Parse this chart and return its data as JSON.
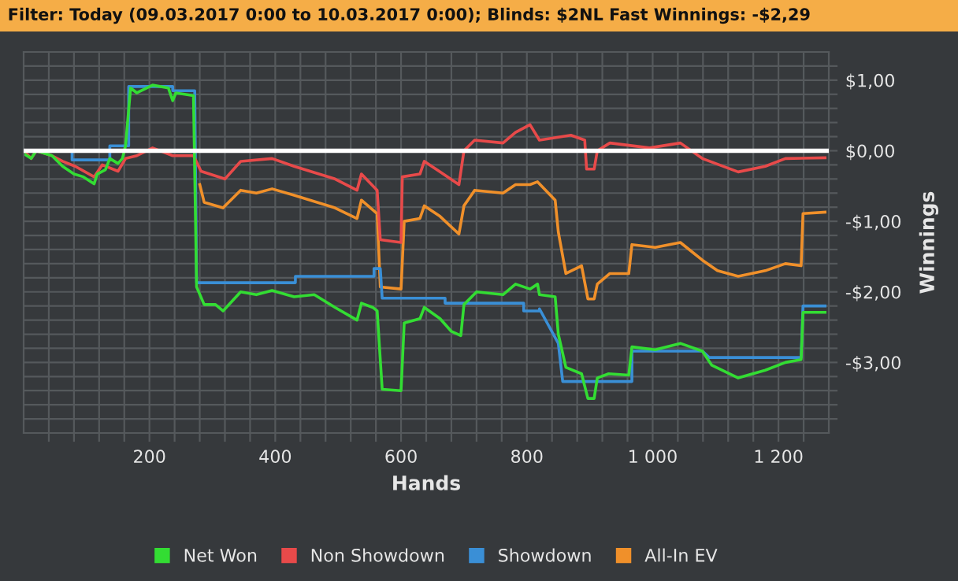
{
  "chart_data": {
    "type": "line",
    "title": "Filter: Today (09.03.2017 0:00 to 10.03.2017 0:00); Blinds: $2NL Fast Winnings: -$2,29",
    "xlabel": "Hands",
    "ylabel": "Winnings",
    "series": [
      {
        "name": "Net Won",
        "color": "#33dd33",
        "x": [
          0,
          12,
          20,
          45,
          62,
          80,
          95,
          112,
          117,
          130,
          137,
          150,
          157,
          162,
          170,
          180,
          205,
          230,
          237,
          242,
          270,
          275,
          287,
          305,
          317,
          345,
          370,
          395,
          430,
          462,
          495,
          530,
          537,
          555,
          562,
          570,
          600,
          605,
          630,
          637,
          662,
          680,
          695,
          700,
          720,
          762,
          782,
          805,
          817,
          820,
          845,
          850,
          862,
          887,
          897,
          907,
          912,
          930,
          962,
          967,
          1004,
          1044,
          1079,
          1094,
          1136,
          1179,
          1211,
          1236,
          1239,
          1274
        ],
        "values": [
          -0.04,
          -0.11,
          0.0,
          -0.07,
          -0.22,
          -0.33,
          -0.37,
          -0.47,
          -0.33,
          -0.27,
          -0.11,
          -0.18,
          -0.11,
          0.07,
          0.89,
          0.82,
          0.93,
          0.89,
          0.71,
          0.82,
          0.78,
          -1.93,
          -2.18,
          -2.18,
          -2.27,
          -2.0,
          -2.04,
          -1.98,
          -2.07,
          -2.04,
          -2.22,
          -2.4,
          -2.16,
          -2.22,
          -2.27,
          -3.38,
          -3.4,
          -2.44,
          -2.38,
          -2.22,
          -2.38,
          -2.56,
          -2.62,
          -2.18,
          -2.0,
          -2.04,
          -1.89,
          -1.96,
          -1.89,
          -2.04,
          -2.07,
          -2.6,
          -3.07,
          -3.16,
          -3.51,
          -3.51,
          -3.22,
          -3.16,
          -3.18,
          -2.78,
          -2.82,
          -2.73,
          -2.84,
          -3.04,
          -3.22,
          -3.11,
          -3.0,
          -2.96,
          -2.29,
          -2.29
        ]
      },
      {
        "name": "Non Showdown",
        "color": "#e84a4a",
        "x": [
          0,
          12,
          20,
          45,
          62,
          82,
          112,
          125,
          150,
          162,
          180,
          205,
          237,
          270,
          282,
          320,
          345,
          395,
          430,
          495,
          530,
          537,
          562,
          567,
          600,
          602,
          630,
          637,
          662,
          692,
          700,
          717,
          762,
          782,
          805,
          820,
          870,
          892,
          895,
          907,
          912,
          932,
          995,
          1044,
          1079,
          1136,
          1179,
          1211,
          1274
        ],
        "values": [
          0.0,
          -0.11,
          0.0,
          -0.07,
          -0.15,
          -0.22,
          -0.37,
          -0.2,
          -0.29,
          -0.11,
          -0.07,
          0.04,
          -0.07,
          -0.07,
          -0.29,
          -0.4,
          -0.15,
          -0.11,
          -0.22,
          -0.4,
          -0.56,
          -0.33,
          -0.56,
          -1.26,
          -1.3,
          -0.37,
          -0.33,
          -0.15,
          -0.3,
          -0.48,
          0.0,
          0.15,
          0.11,
          0.26,
          0.37,
          0.15,
          0.22,
          0.15,
          -0.26,
          -0.26,
          0.0,
          0.11,
          0.04,
          0.11,
          -0.11,
          -0.3,
          -0.22,
          -0.11,
          -0.1
        ]
      },
      {
        "name": "Showdown",
        "color": "#3a8fd6",
        "x": [
          0,
          77,
          77,
          137,
          137,
          167,
          167,
          237,
          237,
          272,
          275,
          432,
          432,
          557,
          557,
          567,
          570,
          670,
          670,
          795,
          795,
          820,
          820,
          850,
          857,
          967,
          967,
          1079,
          1090,
          1236,
          1239,
          1274
        ],
        "values": [
          0.0,
          0.0,
          -0.13,
          -0.13,
          0.07,
          0.07,
          0.91,
          0.91,
          0.85,
          0.85,
          -1.87,
          -1.87,
          -1.78,
          -1.78,
          -1.67,
          -1.67,
          -2.09,
          -2.09,
          -2.16,
          -2.16,
          -2.27,
          -2.27,
          -2.24,
          -2.73,
          -3.27,
          -3.27,
          -2.84,
          -2.84,
          -2.93,
          -2.93,
          -2.2,
          -2.2
        ]
      },
      {
        "name": "All-In EV",
        "color": "#f0902a",
        "x": [
          280,
          287,
          317,
          345,
          370,
          395,
          430,
          495,
          530,
          537,
          562,
          567,
          600,
          605,
          630,
          637,
          662,
          692,
          700,
          717,
          762,
          782,
          805,
          817,
          845,
          850,
          862,
          887,
          897,
          907,
          912,
          932,
          962,
          967,
          1004,
          1044,
          1079,
          1103,
          1136,
          1179,
          1211,
          1236,
          1239,
          1274
        ],
        "values": [
          -0.48,
          -0.73,
          -0.81,
          -0.56,
          -0.6,
          -0.54,
          -0.63,
          -0.81,
          -0.96,
          -0.7,
          -0.89,
          -1.93,
          -1.96,
          -1.0,
          -0.96,
          -0.78,
          -0.93,
          -1.18,
          -0.78,
          -0.56,
          -0.6,
          -0.48,
          -0.48,
          -0.44,
          -0.7,
          -1.15,
          -1.74,
          -1.63,
          -2.1,
          -2.1,
          -1.89,
          -1.74,
          -1.74,
          -1.33,
          -1.37,
          -1.3,
          -1.55,
          -1.7,
          -1.78,
          -1.7,
          -1.6,
          -1.63,
          -0.89,
          -0.87
        ]
      }
    ],
    "xlim": [
      0,
      1280
    ],
    "xticks": [
      {
        "value": 40,
        "label": null
      },
      {
        "value": 80,
        "label": null
      },
      {
        "value": 120,
        "label": null
      },
      {
        "value": 160,
        "label": null
      },
      200,
      {
        "value": 240,
        "label": null
      },
      {
        "value": 280,
        "label": null
      },
      {
        "value": 320,
        "label": null
      },
      {
        "value": 360,
        "label": null
      },
      400,
      {
        "value": 440,
        "label": null
      },
      {
        "value": 480,
        "label": null
      },
      {
        "value": 520,
        "label": null
      },
      {
        "value": 560,
        "label": null
      },
      600,
      {
        "value": 640,
        "label": null
      },
      {
        "value": 680,
        "label": null
      },
      {
        "value": 720,
        "label": null
      },
      {
        "value": 760,
        "label": null
      },
      800,
      {
        "value": 840,
        "label": null
      },
      {
        "value": 880,
        "label": null
      },
      {
        "value": 920,
        "label": null
      },
      {
        "value": 960,
        "label": null
      },
      {
        "value": 1000,
        "label": "1 000"
      },
      {
        "value": 1040,
        "label": null
      },
      {
        "value": 1080,
        "label": null
      },
      {
        "value": 1120,
        "label": null
      },
      {
        "value": 1160,
        "label": null
      },
      {
        "value": 1200,
        "label": "1 200"
      },
      {
        "value": 1240,
        "label": null
      }
    ],
    "ylim": [
      -4.0,
      1.4
    ],
    "yticks": [
      {
        "value": -3.8,
        "label": null
      },
      {
        "value": -3.6,
        "label": null
      },
      {
        "value": -3.4,
        "label": null
      },
      {
        "value": -3.2,
        "label": null
      },
      {
        "value": -3,
        "label": "-$3,00"
      },
      {
        "value": -2.8,
        "label": null
      },
      {
        "value": -2.6,
        "label": null
      },
      {
        "value": -2.4,
        "label": null
      },
      {
        "value": -2.2,
        "label": null
      },
      {
        "value": -2,
        "label": "-$2,00"
      },
      {
        "value": -1.8,
        "label": null
      },
      {
        "value": -1.6,
        "label": null
      },
      {
        "value": -1.4,
        "label": null
      },
      {
        "value": -1.2,
        "label": null
      },
      {
        "value": -1,
        "label": "-$1,00"
      },
      {
        "value": -0.8,
        "label": null
      },
      {
        "value": -0.6,
        "label": null
      },
      {
        "value": -0.4,
        "label": null
      },
      {
        "value": -0.2,
        "label": null
      },
      {
        "value": 0,
        "label": "$0,00"
      },
      {
        "value": 0.2,
        "label": null
      },
      {
        "value": 0.4,
        "label": null
      },
      {
        "value": 0.6,
        "label": null
      },
      {
        "value": 0.8,
        "label": null
      },
      {
        "value": 1,
        "label": "$1,00"
      },
      {
        "value": 1.2,
        "label": null
      }
    ],
    "ref_lines": [
      {
        "axis": "y",
        "value": 0,
        "color": "#ffffff"
      }
    ],
    "grid": true,
    "legend": "bottom",
    "marker": "none",
    "line_style": "solid"
  }
}
